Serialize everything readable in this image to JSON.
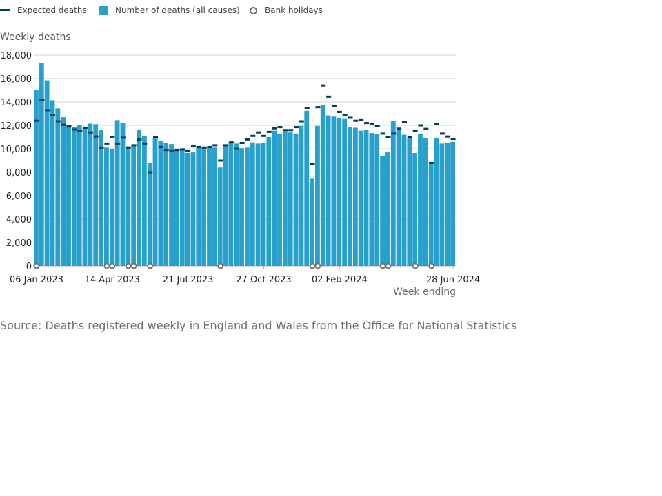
{
  "legend": {
    "expected": "Expected deaths",
    "deaths": "Number of deaths (all causes)",
    "holidays": "Bank holidays"
  },
  "colors": {
    "bar": "#27a0cc",
    "expected": "#003c57",
    "holiday_stroke": "#707071",
    "grid": "#d0d0d0"
  },
  "source": "Source: Deaths registered weekly in England and Wales from the Office for National Statistics",
  "chart_data": {
    "type": "bar",
    "ylabel": "Weekly deaths",
    "xlabel": "Week ending",
    "ylim": [
      0,
      18000
    ],
    "yticks": [
      0,
      2000,
      4000,
      6000,
      8000,
      10000,
      12000,
      14000,
      16000,
      18000
    ],
    "ytick_labels": [
      "0",
      "2,000",
      "4,000",
      "6,000",
      "8,000",
      "10,000",
      "12,000",
      "14,000",
      "16,000",
      "18,000"
    ],
    "xtick_labels": [
      {
        "index": 0,
        "label": "06 Jan 2023"
      },
      {
        "index": 14,
        "label": "14 Apr 2023"
      },
      {
        "index": 28,
        "label": "21 Jul 2023"
      },
      {
        "index": 42,
        "label": "27 Oct 2023"
      },
      {
        "index": 56,
        "label": "02 Feb 2024"
      },
      {
        "index": 77,
        "label": "28 Jun 2024"
      }
    ],
    "grid": true,
    "legend_position": "top-left",
    "series": [
      {
        "name": "Number of deaths (all causes)",
        "type": "bar",
        "values": [
          15000,
          17350,
          15850,
          14150,
          13450,
          12700,
          12000,
          11850,
          12050,
          11750,
          12150,
          12100,
          11600,
          10100,
          10000,
          12450,
          12200,
          10200,
          10300,
          11650,
          11100,
          8800,
          10900,
          10700,
          10500,
          10400,
          9900,
          10000,
          9650,
          9700,
          10200,
          10100,
          10150,
          10100,
          8400,
          10300,
          10500,
          10450,
          10050,
          10100,
          10550,
          10450,
          10500,
          11000,
          11550,
          11300,
          11500,
          11400,
          11300,
          11950,
          13250,
          7450,
          11950,
          13750,
          12850,
          12750,
          12650,
          12550,
          11850,
          11800,
          11550,
          11600,
          11350,
          11250,
          9400,
          9700,
          12400,
          11850,
          11200,
          10900,
          9650,
          11250,
          10900,
          8850,
          10950,
          10450,
          10500,
          10600
        ]
      },
      {
        "name": "Expected deaths",
        "type": "marker",
        "values": [
          12400,
          14150,
          13300,
          12850,
          12350,
          12050,
          11900,
          11650,
          11500,
          11800,
          11400,
          11050,
          10100,
          10450,
          11000,
          10450,
          10950,
          10100,
          10300,
          10800,
          10450,
          8000,
          11000,
          10150,
          9900,
          9800,
          9900,
          9950,
          9800,
          10200,
          10150,
          10100,
          10150,
          10300,
          9000,
          10300,
          10550,
          10000,
          10500,
          10800,
          11100,
          11400,
          11100,
          11450,
          11750,
          11850,
          11600,
          11600,
          11850,
          12350,
          13500,
          8700,
          13550,
          15400,
          14450,
          13650,
          13150,
          12850,
          12650,
          12400,
          12450,
          12200,
          12150,
          11950,
          11300,
          11000,
          11300,
          11700,
          12300,
          11000,
          11550,
          12000,
          11700,
          8800,
          12100,
          11300,
          11050,
          10850
        ]
      }
    ],
    "bank_holiday_weeks": [
      0,
      13,
      14,
      17,
      18,
      21,
      34,
      51,
      52,
      64,
      65,
      70,
      73
    ]
  }
}
